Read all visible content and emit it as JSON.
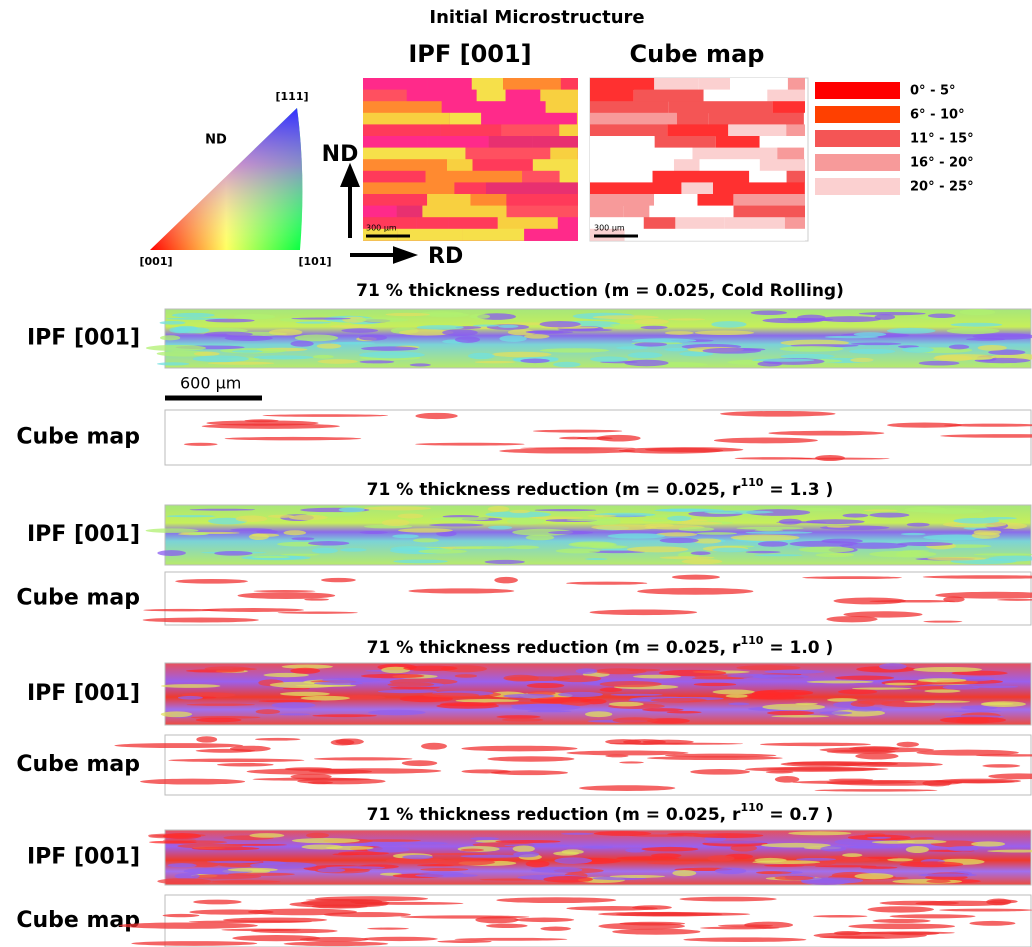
{
  "initial": {
    "title": "Initial Microstructure",
    "ipf_label": "IPF [001]",
    "cube_label": "Cube map",
    "triangle": {
      "nd": "ND",
      "corner_111": "[111]",
      "corner_001": "[001]",
      "corner_101": "[101]"
    },
    "axes": {
      "nd": "ND",
      "rd": "RD"
    },
    "scale_bars": [
      "300 µm",
      "300 µm"
    ],
    "legend": [
      {
        "label": "0° - 5°",
        "color": "#ff0000"
      },
      {
        "label": "6° - 10°",
        "color": "#ff4000"
      },
      {
        "label": "11° - 15°",
        "color": "#f45555"
      },
      {
        "label": "16° - 20°",
        "color": "#f79a9a"
      },
      {
        "label": "20° - 25°",
        "color": "#fbd0d0"
      }
    ]
  },
  "panels": [
    {
      "title": {
        "prefix": "71 % thickness reduction (m = 0.025, Cold Rolling)"
      },
      "rows": [
        "IPF [001]",
        "Cube map"
      ],
      "scale_bar": "600 µm"
    },
    {
      "title": {
        "prefix": "71 % thickness reduction (m = 0.025, r",
        "sup": "110",
        "suffix": " = 1.3 )"
      },
      "rows": [
        "IPF [001]",
        "Cube map"
      ]
    },
    {
      "title": {
        "prefix": "71 % thickness reduction (m = 0.025, r",
        "sup": "110",
        "suffix": " = 1.0 )"
      },
      "rows": [
        "IPF [001]",
        "Cube map"
      ]
    },
    {
      "title": {
        "prefix": "71 % thickness reduction (m = 0.025, r",
        "sup": "110",
        "suffix": " = 0.7 )"
      },
      "rows": [
        "IPF [001]",
        "Cube map"
      ]
    }
  ]
}
